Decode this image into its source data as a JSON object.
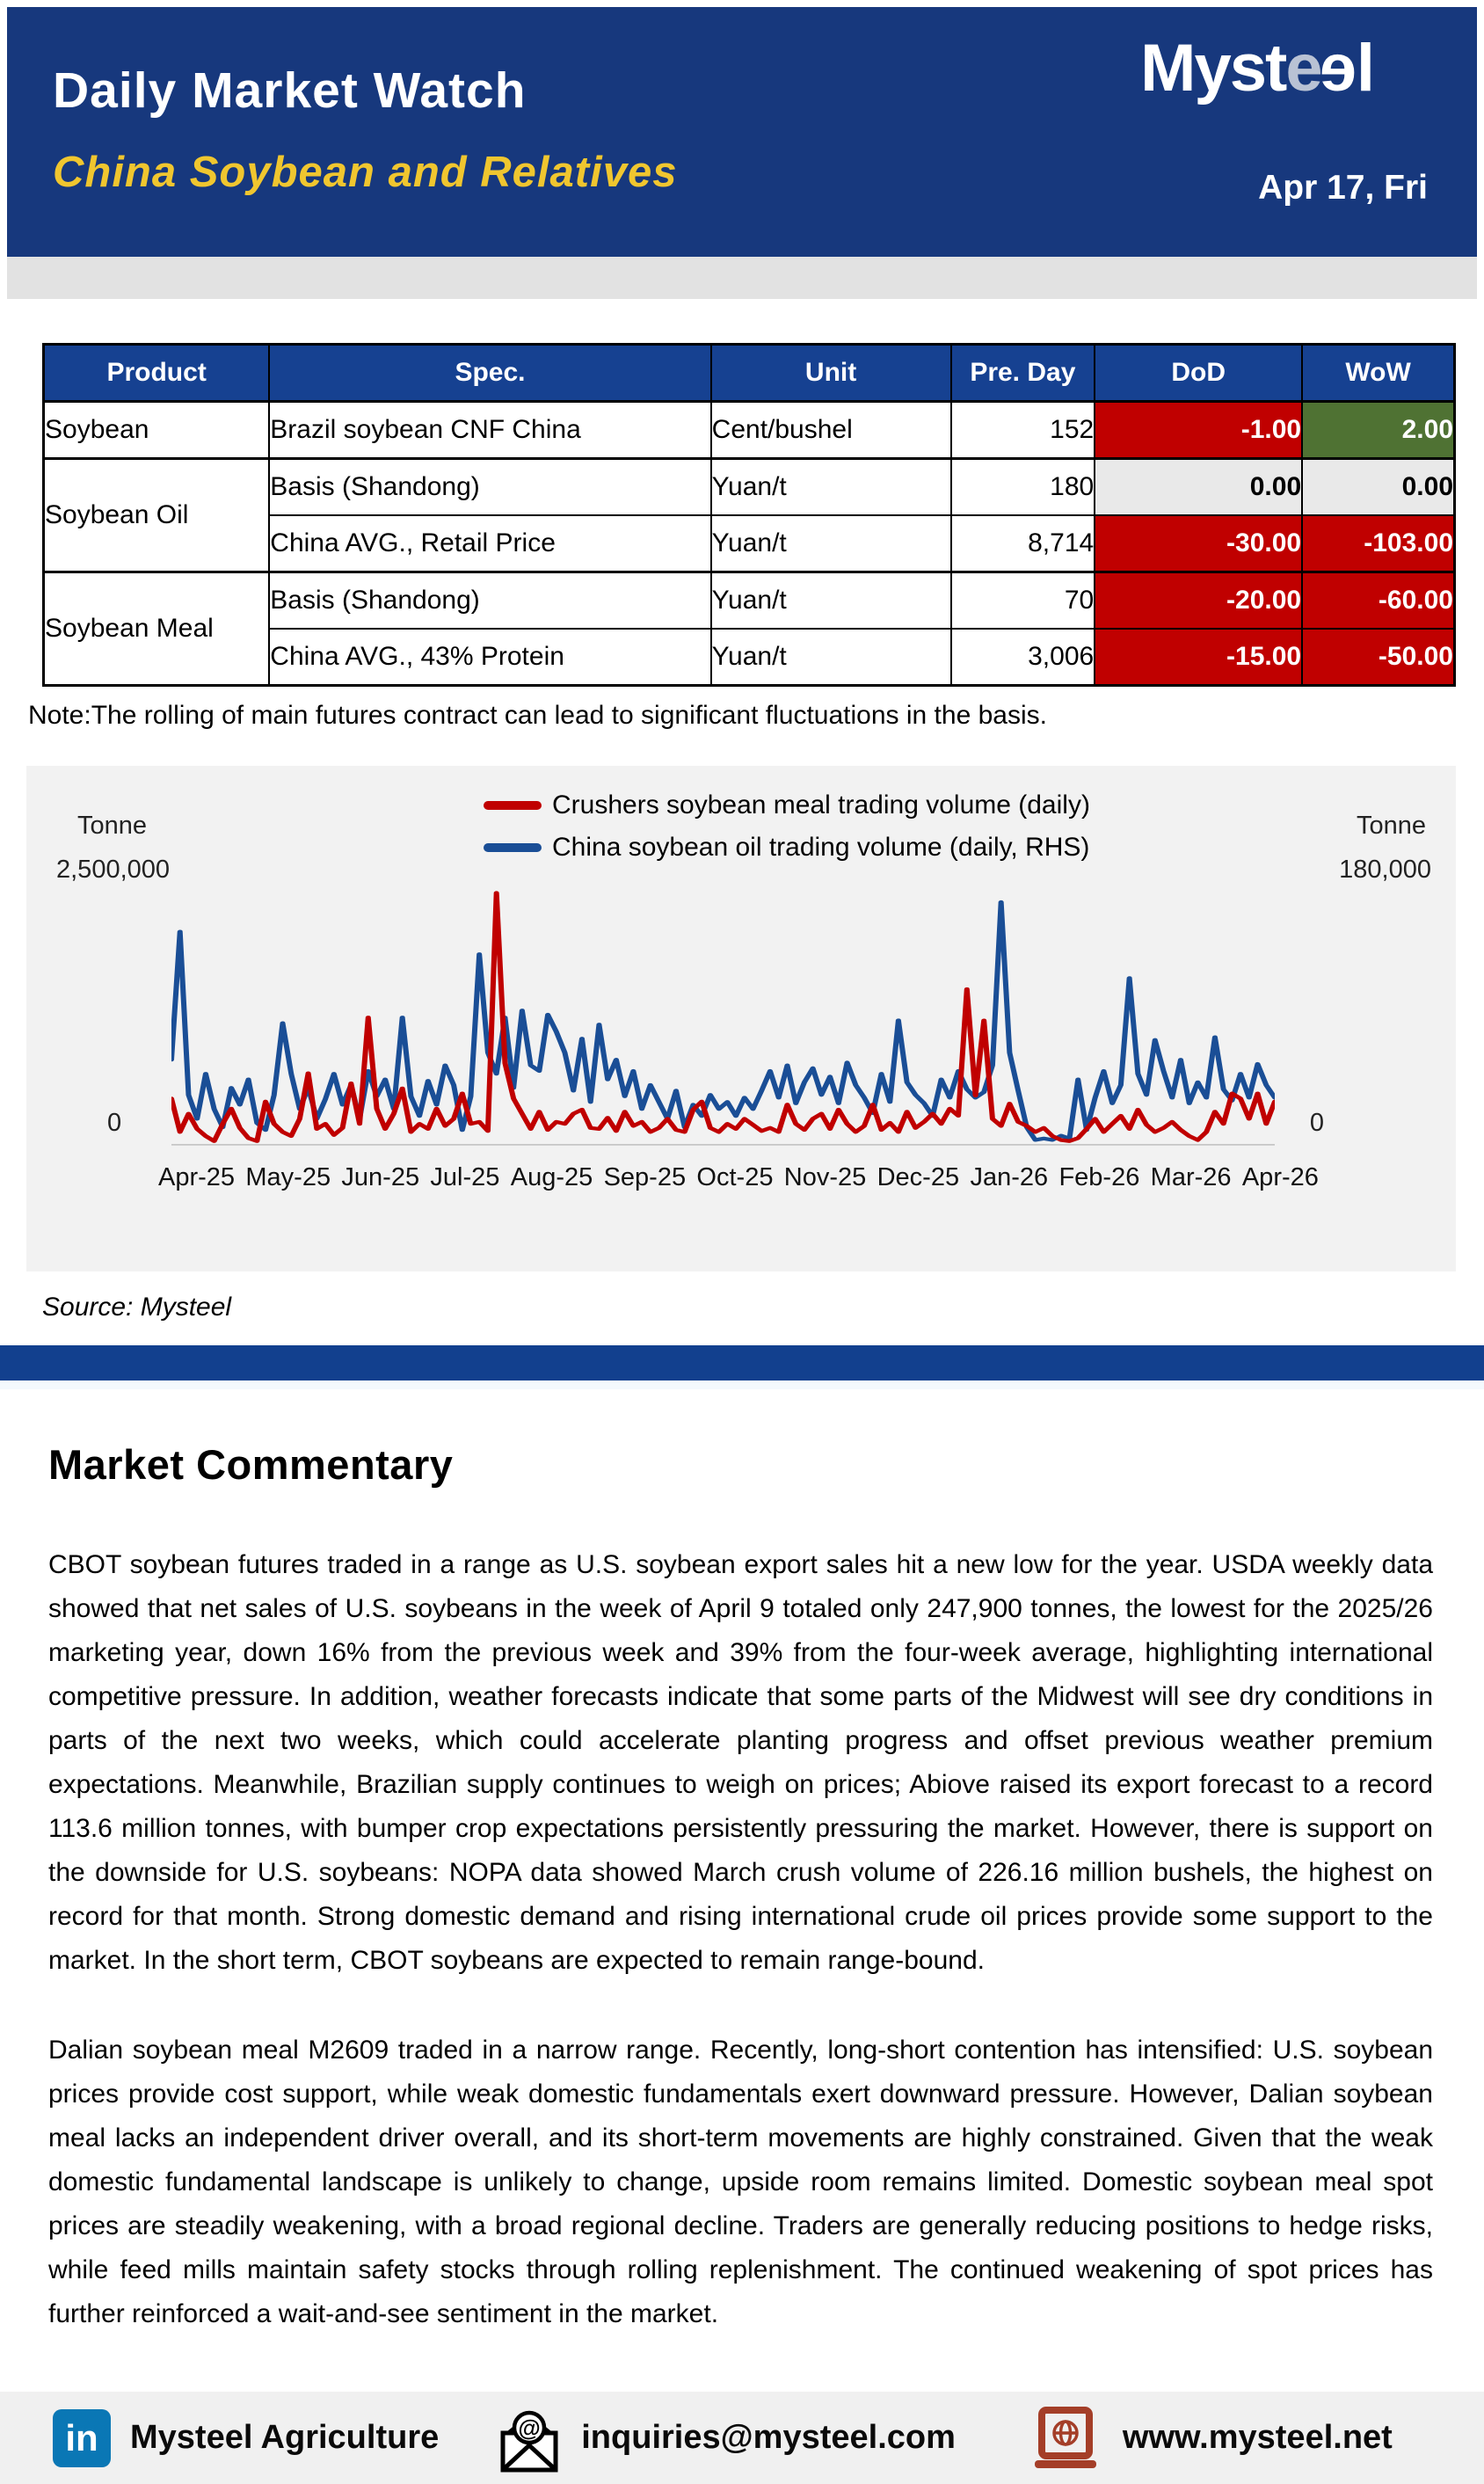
{
  "header": {
    "title": "Daily Market Watch",
    "subtitle": "China Soybean and Relatives",
    "subtitle_color": "#F0C62F",
    "logo": {
      "part1": "Myst",
      "e_grey": "e",
      "e_white": "e",
      "part2": "l"
    },
    "date": "Apr 17, Fri"
  },
  "table": {
    "columns": [
      "Product",
      "Spec.",
      "Unit",
      "Pre. Day",
      "DoD",
      "WoW"
    ],
    "groups": [
      {
        "product": "Soybean",
        "rows": [
          {
            "spec": "Brazil soybean CNF China",
            "unit": "Cent/bushel",
            "pre_day": "152",
            "dod": {
              "value": "-1.00",
              "state": "down"
            },
            "wow": {
              "value": "2.00",
              "state": "up"
            }
          }
        ]
      },
      {
        "product": "Soybean Oil",
        "rows": [
          {
            "spec": "Basis (Shandong)",
            "unit": "Yuan/t",
            "pre_day": "180",
            "dod": {
              "value": "0.00",
              "state": "flat"
            },
            "wow": {
              "value": "0.00",
              "state": "flat"
            }
          },
          {
            "spec": "China AVG., Retail Price",
            "unit": "Yuan/t",
            "pre_day": "8,714",
            "dod": {
              "value": "-30.00",
              "state": "down"
            },
            "wow": {
              "value": "-103.00",
              "state": "down"
            }
          }
        ]
      },
      {
        "product": "Soybean Meal",
        "rows": [
          {
            "spec": "Basis (Shandong)",
            "unit": "Yuan/t",
            "pre_day": "70",
            "dod": {
              "value": "-20.00",
              "state": "down"
            },
            "wow": {
              "value": "-60.00",
              "state": "down"
            }
          },
          {
            "spec": "China AVG., 43% Protein",
            "unit": "Yuan/t",
            "pre_day": "3,006",
            "dod": {
              "value": "-15.00",
              "state": "down"
            },
            "wow": {
              "value": "-50.00",
              "state": "down"
            }
          }
        ]
      }
    ],
    "note": "Note:The rolling of main futures contract can lead to significant fluctuations in the basis.",
    "status_colors": {
      "down": "#C00000",
      "up": "#4F7233",
      "flat": "#E9E9E9"
    }
  },
  "chart_data": {
    "type": "line",
    "title": "",
    "legend_position": "top-center",
    "grid": false,
    "left_axis": {
      "unit_label": "Tonne",
      "max_label": "2,500,000",
      "min_label": "0",
      "range": [
        0,
        2500000
      ]
    },
    "right_axis": {
      "unit_label": "Tonne",
      "max_label": "180,000",
      "min_label": "0",
      "range": [
        0,
        180000
      ]
    },
    "x_tick_labels": [
      "Apr-25",
      "May-25",
      "Jun-25",
      "Jul-25",
      "Aug-25",
      "Sep-25",
      "Oct-25",
      "Nov-25",
      "Dec-25",
      "Jan-26",
      "Feb-26",
      "Mar-26",
      "Apr-26"
    ],
    "series": [
      {
        "name": "Crushers soybean meal trading volume (daily)",
        "color": "#C00000",
        "axis": "left",
        "max": 2500000,
        "values": [
          450000,
          120000,
          300000,
          150000,
          80000,
          30000,
          200000,
          350000,
          160000,
          60000,
          30000,
          420000,
          200000,
          120000,
          80000,
          250000,
          700000,
          150000,
          200000,
          90000,
          160000,
          600000,
          200000,
          1250000,
          350000,
          150000,
          300000,
          550000,
          120000,
          200000,
          150000,
          350000,
          180000,
          250000,
          500000,
          200000,
          220000,
          130000,
          2480000,
          800000,
          450000,
          300000,
          150000,
          320000,
          140000,
          220000,
          200000,
          300000,
          340000,
          160000,
          150000,
          260000,
          130000,
          320000,
          180000,
          220000,
          120000,
          160000,
          250000,
          140000,
          120000,
          340000,
          420000,
          160000,
          120000,
          200000,
          150000,
          250000,
          190000,
          130000,
          160000,
          120000,
          390000,
          200000,
          140000,
          250000,
          300000,
          150000,
          340000,
          200000,
          120000,
          180000,
          390000,
          140000,
          210000,
          120000,
          320000,
          160000,
          220000,
          300000,
          200000,
          350000,
          280000,
          1530000,
          480000,
          1220000,
          250000,
          180000,
          400000,
          220000,
          180000,
          120000,
          160000,
          80000,
          40000,
          30000,
          60000,
          150000,
          250000,
          120000,
          200000,
          280000,
          150000,
          340000,
          190000,
          120000,
          160000,
          220000,
          140000,
          80000,
          40000,
          120000,
          320000,
          200000,
          500000,
          450000,
          250000,
          500000,
          200000,
          420000
        ]
      },
      {
        "name": "China soybean oil trading volume (daily, RHS)",
        "color": "#1A4E96",
        "axis": "right",
        "max": 180000,
        "values": [
          60000,
          151000,
          35000,
          18000,
          50000,
          25000,
          12000,
          40000,
          28000,
          46000,
          15000,
          10000,
          35000,
          86000,
          50000,
          25000,
          40000,
          18000,
          32000,
          50000,
          28000,
          42000,
          18000,
          52000,
          34000,
          46000,
          25000,
          90000,
          34000,
          20000,
          45000,
          28000,
          56000,
          42000,
          10000,
          34000,
          135000,
          65000,
          50000,
          90000,
          40000,
          95000,
          56000,
          52000,
          92000,
          80000,
          65000,
          38000,
          75000,
          30000,
          85000,
          46000,
          60000,
          34000,
          52000,
          25000,
          42000,
          30000,
          18000,
          38000,
          12000,
          28000,
          20000,
          35000,
          25000,
          30000,
          20000,
          33000,
          25000,
          38000,
          52000,
          33000,
          56000,
          29000,
          44000,
          54000,
          35000,
          48000,
          29000,
          58000,
          42000,
          33000,
          22000,
          50000,
          30000,
          88000,
          44000,
          35000,
          29000,
          20000,
          46000,
          33000,
          52000,
          39000,
          33000,
          37000,
          56000,
          172000,
          65000,
          38000,
          12000,
          3000,
          4000,
          3000,
          6000,
          4000,
          46000,
          10000,
          33000,
          52000,
          29000,
          42000,
          118000,
          50000,
          35000,
          74000,
          52000,
          33000,
          60000,
          29000,
          44000,
          33000,
          76000,
          39000,
          31000,
          50000,
          33000,
          57000,
          42000,
          33000
        ]
      }
    ],
    "source": "Source: Mysteel"
  },
  "commentary": {
    "heading": "Market Commentary",
    "paragraph1": "CBOT soybean futures traded in a range as U.S. soybean export sales hit a new low for the year. USDA weekly data showed that net sales of U.S. soybeans in the week of April 9 totaled only 247,900 tonnes, the lowest for the 2025/26 marketing year, down 16% from the previous week and 39% from the four-week average, highlighting international competitive pressure. In addition, weather forecasts indicate that some parts of the Midwest will see dry conditions in parts of the next two weeks, which could accelerate planting progress and offset previous weather premium expectations. Meanwhile, Brazilian supply continues to weigh on prices; Abiove raised its export forecast to a record 113.6 million tonnes, with bumper crop expectations persistently pressuring the market. However, there is support on the downside for U.S. soybeans: NOPA data showed March crush volume of 226.16 million bushels, the highest on record for that month. Strong domestic demand and rising international crude oil prices provide some support to the market. In the short term, CBOT soybeans are expected to remain range-bound.",
    "paragraph2": "Dalian soybean meal M2609 traded in a narrow range. Recently, long-short contention has intensified: U.S. soybean prices provide cost support, while weak domestic fundamentals exert downward pressure. However, Dalian soybean meal lacks an independent driver overall, and its short-term movements are highly constrained. Given that the weak domestic fundamental landscape is unlikely to change, upside room remains limited. Domestic soybean meal spot prices are steadily weakening, with a broad regional decline. Traders are generally reducing positions to hedge risks, while feed mills maintain safety stocks through rolling replenishment. The continued weakening of spot prices has further reinforced a wait-and-see sentiment in the market."
  },
  "footer": {
    "linkedin_label": "in",
    "linkedin_name": "Mysteel Agriculture",
    "email": "inquiries@mysteel.com",
    "website": "www.mysteel.net",
    "linkedin_color": "#0A77B5",
    "laptop_icon_color": "#A43E28"
  },
  "colors": {
    "header_navy": "#17387D",
    "table_header_blue": "#164191",
    "divider_blue": "#12408E",
    "chart_bg": "#F2F2F2",
    "footer_bg": "#F0F0F0"
  }
}
